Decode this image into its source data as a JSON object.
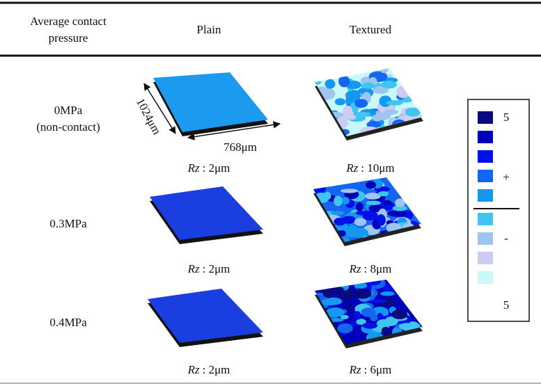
{
  "table": {
    "headers": {
      "pressure_lines": [
        "Average contact",
        "pressure"
      ],
      "plain": "Plain",
      "textured": "Textured"
    },
    "rows": [
      {
        "pressure_lines": [
          "0MPa",
          "(non-contact)"
        ],
        "plain": {
          "symbol": "Rz",
          "text": ": 2μm"
        },
        "textured": {
          "symbol": "Rz",
          "text": ": 10μm"
        }
      },
      {
        "pressure_lines": [
          "0.3MPa"
        ],
        "plain": {
          "symbol": "Rz",
          "text": ": 2μm"
        },
        "textured": {
          "symbol": "Rz",
          "text": ": 8μm"
        }
      },
      {
        "pressure_lines": [
          "0.4MPa"
        ],
        "plain": {
          "symbol": "Rz",
          "text": ": 2μm"
        },
        "textured": {
          "symbol": "Rz",
          "text": ": 6μm"
        }
      }
    ]
  },
  "dimensions": {
    "depth": "1024μm",
    "width": "768μm"
  },
  "legend": {
    "labels": [
      "5",
      "+",
      "-",
      "5"
    ]
  }
}
